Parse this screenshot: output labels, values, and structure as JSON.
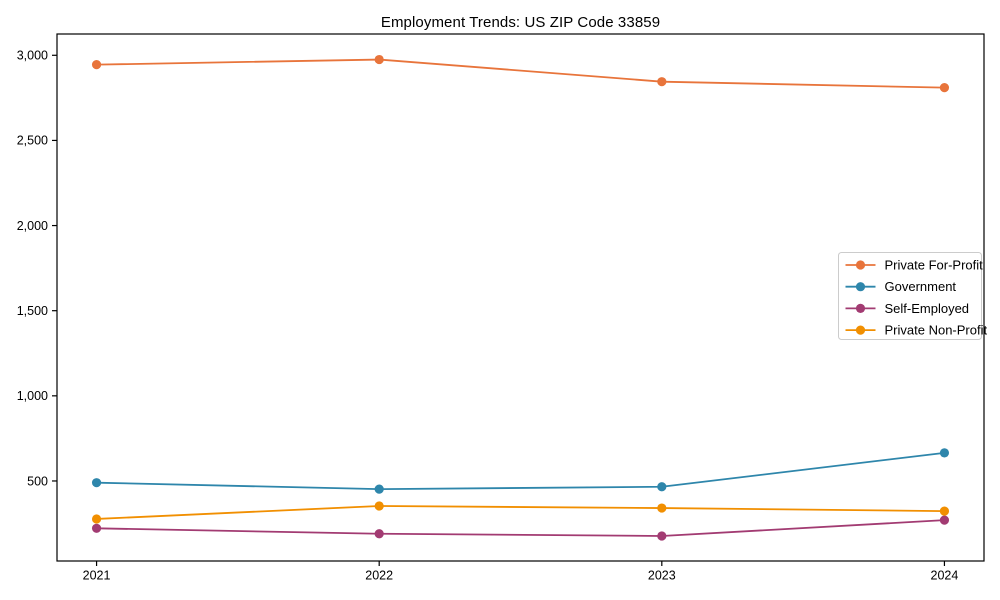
{
  "figure": {
    "background": "#ffffff",
    "frame_color": "#000000",
    "text_color": "#000000",
    "legend_border_color": "#cccccc",
    "legend_background": "#ffffff"
  },
  "chart_data": {
    "type": "line",
    "title": "Employment Trends: US ZIP Code 33859",
    "xlabel": "",
    "ylabel": "",
    "x": [
      2021,
      2022,
      2023,
      2024
    ],
    "x_tick_labels": [
      "2021",
      "2022",
      "2023",
      "2024"
    ],
    "y_ticks": [
      500,
      1000,
      1500,
      2000,
      2500,
      3000
    ],
    "y_tick_labels": [
      "500",
      "1,000",
      "1,500",
      "2,000",
      "2,500",
      "3,000"
    ],
    "xlim": [
      2020.86,
      2024.14
    ],
    "ylim": [
      30,
      3125
    ],
    "grid": false,
    "legend_position": "center right",
    "series": [
      {
        "name": "Private For-Profit",
        "color": "#E8743B",
        "values": [
          2945,
          2975,
          2845,
          2810
        ]
      },
      {
        "name": "Government",
        "color": "#2E86AB",
        "values": [
          490,
          452,
          466,
          665
        ]
      },
      {
        "name": "Self-Employed",
        "color": "#A23B72",
        "values": [
          222,
          190,
          177,
          270
        ]
      },
      {
        "name": "Private Non-Profit",
        "color": "#F18F01",
        "values": [
          277,
          353,
          341,
          323
        ]
      }
    ]
  }
}
